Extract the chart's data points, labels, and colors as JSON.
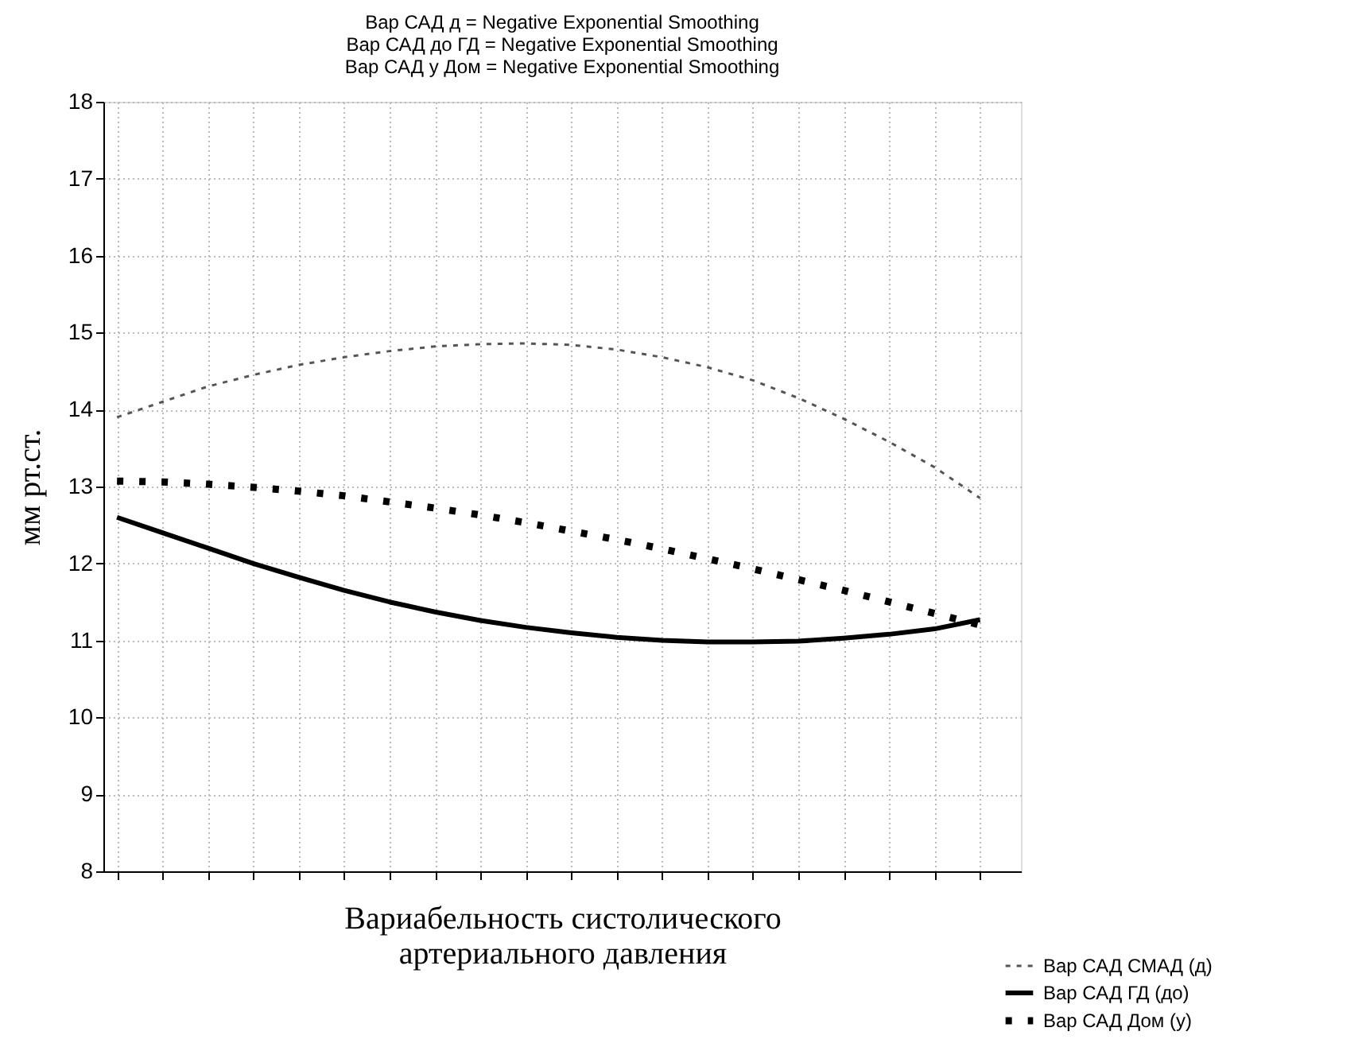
{
  "chart_data": {
    "type": "line",
    "title": "Вар САД д = Negative Exponential Smoothing\nВар САД до ГД = Negative Exponential Smoothing\nВар САД у Дом = Negative Exponential Smoothing",
    "xlabel": "Вариабельность систолического\nартериального давления",
    "ylabel": "мм рт.ст.",
    "categories": [
      null,
      null,
      null,
      null,
      null,
      null,
      null,
      null,
      null,
      null,
      null,
      null,
      null,
      null,
      null,
      null,
      null,
      null,
      null,
      null
    ],
    "series": [
      {
        "name": "Вар САД СМАД (д)",
        "color": "#555555",
        "line_style": "dashed",
        "values": [
          13.9,
          14.1,
          14.3,
          14.45,
          14.58,
          14.68,
          14.76,
          14.82,
          14.85,
          14.86,
          14.84,
          14.78,
          14.68,
          14.55,
          14.38,
          14.15,
          13.88,
          13.58,
          13.25,
          12.85
        ]
      },
      {
        "name": "Вар САД ГД (до)",
        "color": "#000000",
        "line_style": "solid",
        "values": [
          12.6,
          12.4,
          12.2,
          12.0,
          11.82,
          11.65,
          11.5,
          11.37,
          11.26,
          11.17,
          11.1,
          11.04,
          11.0,
          10.98,
          10.98,
          10.99,
          11.03,
          11.08,
          11.15,
          11.27
        ]
      },
      {
        "name": "Вар САД Дом (у)",
        "color": "#000000",
        "line_style": "dotted",
        "values": [
          13.07,
          13.06,
          13.03,
          12.99,
          12.94,
          12.88,
          12.8,
          12.72,
          12.63,
          12.53,
          12.42,
          12.31,
          12.19,
          12.06,
          11.93,
          11.79,
          11.65,
          11.5,
          11.35,
          11.2
        ]
      }
    ],
    "ylim": [
      8,
      18
    ],
    "yticks": [
      8,
      9,
      10,
      11,
      12,
      13,
      14,
      15,
      16,
      17,
      18
    ],
    "grid": true,
    "legend": "bottom right",
    "tick_labels": "y"
  }
}
